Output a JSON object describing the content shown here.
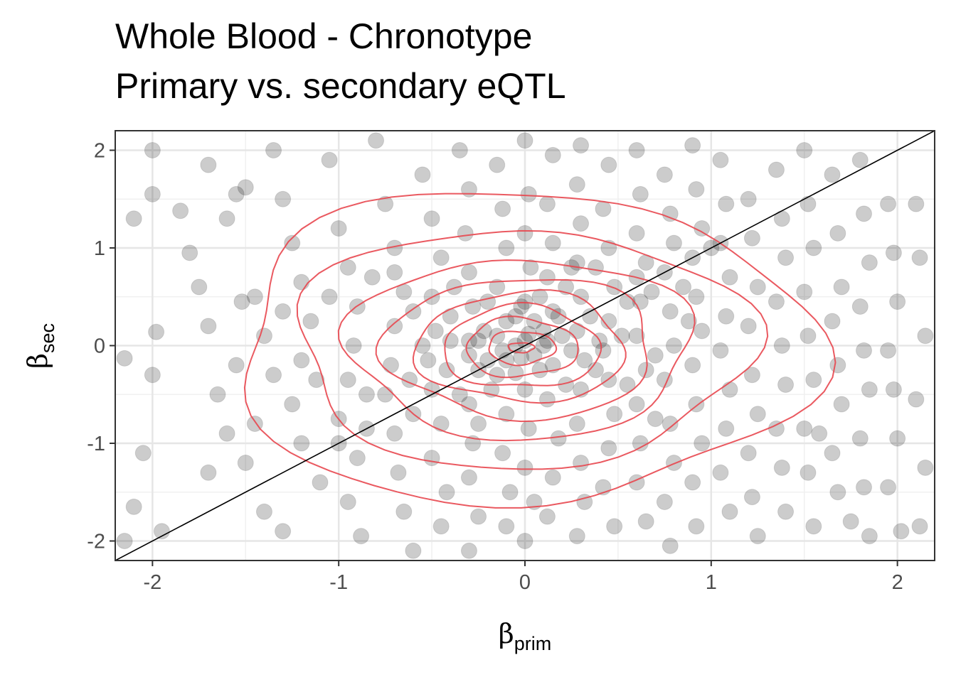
{
  "chart_data": {
    "type": "scatter",
    "title": "Whole Blood - Chronotype",
    "subtitle": "Primary vs. secondary eQTL",
    "xlabel": {
      "symbol": "β",
      "subscript": "prim"
    },
    "ylabel": {
      "symbol": "β",
      "subscript": "sec"
    },
    "xlim": [
      -2.2,
      2.2
    ],
    "ylim": [
      -2.2,
      2.2
    ],
    "x_ticks": [
      -2,
      -1,
      0,
      1,
      2
    ],
    "y_ticks": [
      -2,
      -1,
      0,
      1,
      2
    ],
    "x_tick_labels": [
      "-2",
      "-1",
      "0",
      "1",
      "2"
    ],
    "y_tick_labels": [
      "-2",
      "-1",
      "0",
      "1",
      "2"
    ],
    "grid": true,
    "reference_line": {
      "slope": 1,
      "intercept": 0,
      "color": "#000000"
    },
    "point_color": "#000000",
    "point_alpha": 0.2,
    "density_contour_color": "#e8474f",
    "density_contour_levels_approx_radius": [
      [
        0.07,
        0.05
      ],
      [
        0.18,
        0.17
      ],
      [
        0.3,
        0.3
      ],
      [
        0.42,
        0.42
      ],
      [
        0.56,
        0.56
      ],
      [
        0.72,
        0.72
      ],
      [
        0.92,
        0.92
      ],
      [
        1.22,
        1.22
      ],
      [
        1.55,
        1.6
      ]
    ],
    "points": [
      [
        -2.1,
        1.3
      ],
      [
        -2.0,
        2.0
      ],
      [
        -2.0,
        1.55
      ],
      [
        -1.98,
        0.14
      ],
      [
        -2.15,
        -0.13
      ],
      [
        -2.05,
        -1.1
      ],
      [
        -2.0,
        -0.3
      ],
      [
        -2.1,
        -1.65
      ],
      [
        -2.15,
        -2.0
      ],
      [
        -1.95,
        -1.9
      ],
      [
        -1.85,
        1.38
      ],
      [
        -1.8,
        0.95
      ],
      [
        -1.75,
        0.6
      ],
      [
        -1.7,
        0.2
      ],
      [
        -1.65,
        -0.5
      ],
      [
        -1.6,
        -0.9
      ],
      [
        -1.7,
        -1.3
      ],
      [
        -1.55,
        1.55
      ],
      [
        -1.6,
        1.3
      ],
      [
        -1.5,
        1.62
      ],
      [
        -1.45,
        0.5
      ],
      [
        -1.4,
        0.1
      ],
      [
        -1.35,
        -0.3
      ],
      [
        -1.45,
        -0.8
      ],
      [
        -1.5,
        -1.2
      ],
      [
        -1.4,
        -1.7
      ],
      [
        -1.3,
        -1.9
      ],
      [
        -1.35,
        2.0
      ],
      [
        -1.3,
        1.5
      ],
      [
        -1.25,
        1.05
      ],
      [
        -1.2,
        0.65
      ],
      [
        -1.15,
        0.25
      ],
      [
        -1.2,
        -0.15
      ],
      [
        -1.25,
        -0.6
      ],
      [
        -1.2,
        -1.0
      ],
      [
        -1.1,
        -1.4
      ],
      [
        -1.05,
        1.9
      ],
      [
        -1.0,
        1.2
      ],
      [
        -0.95,
        0.8
      ],
      [
        -0.9,
        0.4
      ],
      [
        -0.92,
        0.0
      ],
      [
        -0.95,
        -0.35
      ],
      [
        -1.0,
        -0.75
      ],
      [
        -0.9,
        -1.15
      ],
      [
        -0.95,
        -1.6
      ],
      [
        -0.88,
        -1.95
      ],
      [
        -0.8,
        2.1
      ],
      [
        -0.75,
        1.45
      ],
      [
        -0.7,
        1.0
      ],
      [
        -0.65,
        0.55
      ],
      [
        -0.7,
        0.2
      ],
      [
        -0.72,
        -0.2
      ],
      [
        -0.75,
        -0.5
      ],
      [
        -0.7,
        -0.9
      ],
      [
        -0.68,
        -1.3
      ],
      [
        -0.65,
        -1.7
      ],
      [
        -0.6,
        -2.1
      ],
      [
        -0.55,
        1.75
      ],
      [
        -0.5,
        1.3
      ],
      [
        -0.45,
        0.9
      ],
      [
        -0.5,
        0.5
      ],
      [
        -0.48,
        0.15
      ],
      [
        -0.52,
        -0.15
      ],
      [
        -0.5,
        -0.45
      ],
      [
        -0.45,
        -0.8
      ],
      [
        -0.5,
        -1.15
      ],
      [
        -0.42,
        -1.5
      ],
      [
        -0.45,
        -1.85
      ],
      [
        -0.35,
        2.0
      ],
      [
        -0.3,
        1.6
      ],
      [
        -0.32,
        1.15
      ],
      [
        -0.3,
        0.75
      ],
      [
        -0.28,
        0.4
      ],
      [
        -0.3,
        0.05
      ],
      [
        -0.25,
        -0.25
      ],
      [
        -0.3,
        -0.6
      ],
      [
        -0.28,
        -1.0
      ],
      [
        -0.3,
        -1.35
      ],
      [
        -0.25,
        -1.75
      ],
      [
        -0.3,
        -2.1
      ],
      [
        -0.15,
        1.85
      ],
      [
        -0.12,
        1.4
      ],
      [
        -0.1,
        1.0
      ],
      [
        -0.15,
        0.6
      ],
      [
        -0.1,
        0.25
      ],
      [
        -0.12,
        -0.05
      ],
      [
        -0.15,
        -0.3
      ],
      [
        -0.1,
        -0.7
      ],
      [
        -0.12,
        -1.1
      ],
      [
        -0.08,
        -1.5
      ],
      [
        -0.1,
        -1.85
      ],
      [
        0.0,
        2.1
      ],
      [
        0.02,
        1.55
      ],
      [
        0.0,
        1.15
      ],
      [
        0.03,
        0.8
      ],
      [
        0.0,
        0.45
      ],
      [
        0.02,
        0.12
      ],
      [
        -0.02,
        -0.12
      ],
      [
        0.0,
        -0.45
      ],
      [
        0.02,
        -0.85
      ],
      [
        0.0,
        -1.25
      ],
      [
        0.05,
        -1.6
      ],
      [
        0.0,
        -2.0
      ],
      [
        0.15,
        1.95
      ],
      [
        0.12,
        1.45
      ],
      [
        0.15,
        1.05
      ],
      [
        0.12,
        0.7
      ],
      [
        0.15,
        0.35
      ],
      [
        0.12,
        0.05
      ],
      [
        0.15,
        -0.2
      ],
      [
        0.12,
        -0.55
      ],
      [
        0.18,
        -0.95
      ],
      [
        0.15,
        -1.35
      ],
      [
        0.12,
        -1.75
      ],
      [
        0.3,
        2.05
      ],
      [
        0.28,
        1.65
      ],
      [
        0.3,
        1.25
      ],
      [
        0.28,
        0.85
      ],
      [
        0.3,
        0.5
      ],
      [
        0.28,
        0.15
      ],
      [
        0.32,
        -0.15
      ],
      [
        0.3,
        -0.45
      ],
      [
        0.28,
        -0.8
      ],
      [
        0.3,
        -1.2
      ],
      [
        0.32,
        -1.6
      ],
      [
        0.28,
        -1.95
      ],
      [
        0.45,
        1.85
      ],
      [
        0.42,
        1.4
      ],
      [
        0.45,
        1.0
      ],
      [
        0.48,
        0.6
      ],
      [
        0.45,
        0.25
      ],
      [
        0.42,
        -0.05
      ],
      [
        0.45,
        -0.35
      ],
      [
        0.48,
        -0.7
      ],
      [
        0.45,
        -1.05
      ],
      [
        0.42,
        -1.45
      ],
      [
        0.48,
        -1.85
      ],
      [
        0.6,
        2.0
      ],
      [
        0.62,
        1.55
      ],
      [
        0.6,
        1.15
      ],
      [
        0.65,
        0.85
      ],
      [
        0.62,
        0.45
      ],
      [
        0.6,
        0.1
      ],
      [
        0.65,
        -0.25
      ],
      [
        0.6,
        -0.6
      ],
      [
        0.62,
        -1.0
      ],
      [
        0.6,
        -1.4
      ],
      [
        0.65,
        -1.8
      ],
      [
        0.75,
        1.75
      ],
      [
        0.78,
        1.35
      ],
      [
        0.8,
        1.05
      ],
      [
        0.75,
        0.75
      ],
      [
        0.78,
        0.35
      ],
      [
        0.8,
        0.0
      ],
      [
        0.75,
        -0.35
      ],
      [
        0.78,
        -0.8
      ],
      [
        0.8,
        -1.2
      ],
      [
        0.75,
        -1.6
      ],
      [
        0.78,
        -2.05
      ],
      [
        0.9,
        2.05
      ],
      [
        0.92,
        1.6
      ],
      [
        0.95,
        1.2
      ],
      [
        0.9,
        0.9
      ],
      [
        0.92,
        0.5
      ],
      [
        0.95,
        0.15
      ],
      [
        0.9,
        -0.2
      ],
      [
        0.92,
        -0.6
      ],
      [
        0.95,
        -1.0
      ],
      [
        0.9,
        -1.4
      ],
      [
        0.92,
        -1.85
      ],
      [
        1.05,
        1.9
      ],
      [
        1.08,
        1.45
      ],
      [
        1.05,
        1.05
      ],
      [
        1.1,
        0.7
      ],
      [
        1.08,
        0.3
      ],
      [
        1.05,
        -0.05
      ],
      [
        1.1,
        -0.45
      ],
      [
        1.08,
        -0.85
      ],
      [
        1.05,
        -1.3
      ],
      [
        1.1,
        -1.7
      ],
      [
        1.2,
        1.5
      ],
      [
        1.22,
        1.1
      ],
      [
        1.25,
        0.6
      ],
      [
        1.2,
        0.2
      ],
      [
        1.22,
        -0.3
      ],
      [
        1.25,
        -0.7
      ],
      [
        1.2,
        -1.1
      ],
      [
        1.22,
        -1.55
      ],
      [
        1.25,
        -1.95
      ],
      [
        1.35,
        1.8
      ],
      [
        1.38,
        1.3
      ],
      [
        1.4,
        0.9
      ],
      [
        1.35,
        0.45
      ],
      [
        1.38,
        0.0
      ],
      [
        1.4,
        -0.4
      ],
      [
        1.35,
        -0.85
      ],
      [
        1.38,
        -1.25
      ],
      [
        1.4,
        -1.7
      ],
      [
        1.5,
        2.0
      ],
      [
        1.52,
        1.45
      ],
      [
        1.55,
        1.0
      ],
      [
        1.5,
        0.55
      ],
      [
        1.52,
        0.1
      ],
      [
        1.55,
        -0.35
      ],
      [
        1.5,
        -0.85
      ],
      [
        1.58,
        -0.9
      ],
      [
        1.52,
        -1.3
      ],
      [
        1.55,
        -1.85
      ],
      [
        1.65,
        1.75
      ],
      [
        1.68,
        1.15
      ],
      [
        1.7,
        0.6
      ],
      [
        1.65,
        0.25
      ],
      [
        1.68,
        -0.2
      ],
      [
        1.7,
        -0.6
      ],
      [
        1.65,
        -1.1
      ],
      [
        1.68,
        -1.5
      ],
      [
        1.8,
        1.9
      ],
      [
        1.82,
        1.35
      ],
      [
        1.85,
        0.85
      ],
      [
        1.8,
        0.4
      ],
      [
        1.82,
        -0.05
      ],
      [
        1.85,
        -0.45
      ],
      [
        1.8,
        -0.95
      ],
      [
        1.82,
        -1.45
      ],
      [
        1.85,
        -1.95
      ],
      [
        1.95,
        1.45
      ],
      [
        1.98,
        0.95
      ],
      [
        2.0,
        0.45
      ],
      [
        1.95,
        -0.05
      ],
      [
        1.98,
        -0.45
      ],
      [
        2.0,
        -0.95
      ],
      [
        1.95,
        -1.45
      ],
      [
        2.02,
        -1.9
      ],
      [
        2.1,
        1.45
      ],
      [
        2.12,
        0.9
      ],
      [
        2.15,
        0.1
      ],
      [
        2.1,
        -0.55
      ],
      [
        2.15,
        -1.25
      ],
      [
        2.12,
        -1.85
      ],
      [
        -1.55,
        -0.2
      ],
      [
        -1.52,
        0.45
      ],
      [
        -1.3,
        0.35
      ],
      [
        -1.12,
        -0.35
      ],
      [
        -1.05,
        0.5
      ],
      [
        -0.85,
        -0.5
      ],
      [
        -0.82,
        0.7
      ],
      [
        -0.62,
        -0.35
      ],
      [
        -0.6,
        0.35
      ],
      [
        -0.55,
        0.0
      ],
      [
        -0.42,
        -0.25
      ],
      [
        -0.4,
        0.3
      ],
      [
        -0.38,
        0.6
      ],
      [
        -0.35,
        -0.5
      ],
      [
        -0.22,
        0.15
      ],
      [
        -0.2,
        -0.15
      ],
      [
        -0.2,
        0.45
      ],
      [
        -0.18,
        -0.45
      ],
      [
        -0.05,
        0.0
      ],
      [
        -0.05,
        0.3
      ],
      [
        -0.05,
        -0.28
      ],
      [
        0.05,
        0.25
      ],
      [
        0.08,
        -0.25
      ],
      [
        0.08,
        0.5
      ],
      [
        0.2,
        0.1
      ],
      [
        0.22,
        -0.4
      ],
      [
        0.22,
        0.6
      ],
      [
        0.35,
        0.3
      ],
      [
        0.38,
        -0.25
      ],
      [
        0.38,
        0.8
      ],
      [
        0.52,
        0.1
      ],
      [
        0.55,
        0.45
      ],
      [
        0.55,
        -0.4
      ],
      [
        0.68,
        0.55
      ],
      [
        0.7,
        -0.1
      ],
      [
        0.85,
        0.6
      ],
      [
        0.88,
        0.25
      ],
      [
        -0.25,
        0.05
      ],
      [
        -0.15,
        0.1
      ],
      [
        0.0,
        0.05
      ],
      [
        0.1,
        0.0
      ],
      [
        0.05,
        -0.1
      ],
      [
        -0.1,
        -0.15
      ],
      [
        0.1,
        0.15
      ],
      [
        0.25,
        -0.05
      ],
      [
        -0.3,
        -0.1
      ],
      [
        0.18,
        0.3
      ],
      [
        -0.02,
        0.4
      ],
      [
        -0.4,
        0.05
      ],
      [
        0.4,
        0.05
      ],
      [
        -0.6,
        -0.7
      ],
      [
        0.6,
        0.7
      ],
      [
        -0.85,
        -0.85
      ],
      [
        -1.0,
        -1.0
      ],
      [
        1.0,
        1.0
      ],
      [
        -0.25,
        -0.8
      ],
      [
        0.25,
        0.8
      ],
      [
        -0.7,
        0.75
      ],
      [
        0.7,
        -0.75
      ],
      [
        -1.7,
        1.85
      ],
      [
        1.75,
        -1.8
      ]
    ]
  }
}
